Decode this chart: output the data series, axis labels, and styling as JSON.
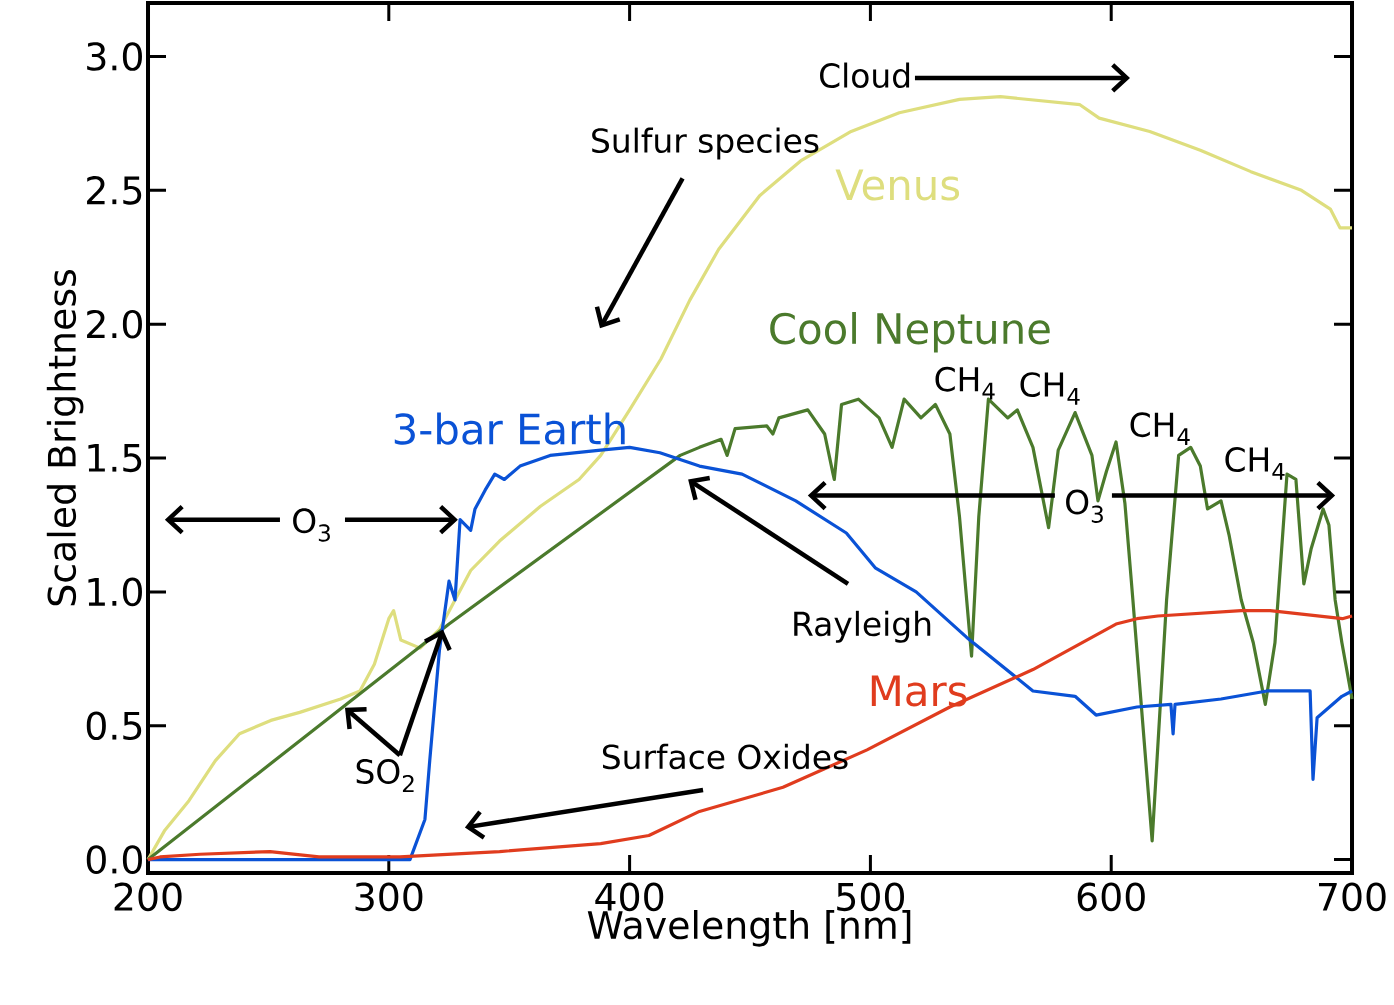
{
  "chart_data": {
    "type": "line",
    "xlabel": "Wavelength [nm]",
    "ylabel": "Scaled Brightness",
    "xlim": [
      200,
      700
    ],
    "ylim": [
      -0.05,
      3.2
    ],
    "xticks": [
      200,
      300,
      400,
      500,
      600,
      700
    ],
    "yticks": [
      {
        "value": 0,
        "label": "0.0"
      },
      0.5,
      {
        "value": 1,
        "label": "1.0"
      },
      1.5,
      {
        "value": 2,
        "label": "2.0"
      },
      2.5,
      {
        "value": 3,
        "label": "3.0"
      }
    ],
    "series": [
      {
        "name": "Venus",
        "color": "#dede7e",
        "x": [
          200,
          207,
          217,
          228,
          238,
          251,
          263,
          280,
          288,
          294,
          300,
          302,
          305,
          313,
          321,
          334,
          346,
          363,
          379,
          388,
          400,
          413,
          425,
          437,
          454,
          471,
          492,
          512,
          537,
          554,
          587,
          595,
          616,
          637,
          658,
          679,
          691,
          695,
          700
        ],
        "values": [
          0,
          0.11,
          0.22,
          0.37,
          0.47,
          0.52,
          0.55,
          0.6,
          0.63,
          0.73,
          0.9,
          0.93,
          0.82,
          0.79,
          0.86,
          1.08,
          1.19,
          1.32,
          1.42,
          1.51,
          1.68,
          1.87,
          2.09,
          2.28,
          2.48,
          2.61,
          2.72,
          2.79,
          2.84,
          2.85,
          2.82,
          2.77,
          2.72,
          2.65,
          2.57,
          2.5,
          2.43,
          2.36,
          2.36
        ]
      },
      {
        "name": "Cool Neptune",
        "color": "#4b7a2c",
        "x": [
          200,
          325,
          421,
          429,
          438,
          440.5,
          443.8,
          457,
          459.5,
          462,
          474,
          481,
          484.5,
          485,
          488,
          495,
          503.6,
          509,
          514,
          521,
          527,
          533,
          537,
          542,
          545,
          549,
          557,
          561,
          567.5,
          574,
          578,
          585,
          592,
          594.5,
          598,
          602,
          605.7,
          609,
          617,
          623,
          628,
          633,
          637,
          640,
          645.6,
          649,
          654,
          659,
          664,
          668,
          673,
          676.7,
          680,
          683,
          688,
          690.4,
          693,
          695.8,
          700
        ],
        "values": [
          0,
          0.88,
          1.51,
          1.54,
          1.57,
          1.51,
          1.61,
          1.62,
          1.59,
          1.65,
          1.68,
          1.59,
          1.44,
          1.42,
          1.7,
          1.72,
          1.65,
          1.54,
          1.72,
          1.65,
          1.7,
          1.59,
          1.28,
          0.76,
          1.28,
          1.72,
          1.65,
          1.68,
          1.54,
          1.24,
          1.53,
          1.67,
          1.51,
          1.34,
          1.45,
          1.56,
          1.33,
          0.97,
          0.07,
          0.97,
          1.51,
          1.54,
          1.47,
          1.31,
          1.34,
          1.21,
          0.97,
          0.81,
          0.58,
          0.81,
          1.44,
          1.42,
          1.03,
          1.16,
          1.31,
          1.25,
          0.97,
          0.81,
          0.6
        ]
      },
      {
        "name": "3-bar Earth",
        "color": "#0a52d6",
        "x": [
          200,
          308.8,
          315,
          317,
          321,
          325,
          327.5,
          329.6,
          334,
          335.8,
          340,
          344,
          348,
          354.5,
          367,
          388,
          400,
          412.6,
          429,
          446.7,
          469,
          490,
          502,
          519,
          540,
          567.5,
          585,
          593.7,
          610.7,
          624.8,
          625.7,
          626.5,
          645.6,
          664.7,
          682.6,
          683.8,
          685.5,
          695.8,
          700
        ],
        "values": [
          0,
          0,
          0.15,
          0.37,
          0.78,
          1.04,
          0.97,
          1.27,
          1.23,
          1.31,
          1.38,
          1.44,
          1.42,
          1.47,
          1.51,
          1.53,
          1.54,
          1.52,
          1.47,
          1.44,
          1.34,
          1.22,
          1.09,
          1.0,
          0.83,
          0.63,
          0.61,
          0.54,
          0.57,
          0.58,
          0.47,
          0.58,
          0.6,
          0.63,
          0.63,
          0.3,
          0.53,
          0.61,
          0.63
        ]
      },
      {
        "name": "Mars",
        "color": "#e03c1e",
        "x": [
          200,
          205,
          221.6,
          250.7,
          271,
          304.6,
          346,
          388,
          408,
          429,
          463.7,
          498.6,
          533,
          567.5,
          602,
          610.7,
          619.4,
          654,
          666,
          696,
          700
        ],
        "values": [
          0,
          0.01,
          0.02,
          0.03,
          0.01,
          0.01,
          0.03,
          0.06,
          0.09,
          0.18,
          0.27,
          0.41,
          0.57,
          0.71,
          0.88,
          0.9,
          0.91,
          0.93,
          0.93,
          0.9,
          0.91
        ]
      }
    ],
    "annotations": [
      "Cloud",
      "Sulfur species",
      "O$_{3}$",
      "O$_{3}$",
      {
        "text": "SO$_{2}$",
        "x": 322.5,
        "y": 0.86
      },
      "Surface Oxides",
      "Rayleigh",
      "CH$_{4}$",
      "CH$_{4}$",
      "CH$_{4}$",
      "CH$_{4}$"
    ]
  }
}
